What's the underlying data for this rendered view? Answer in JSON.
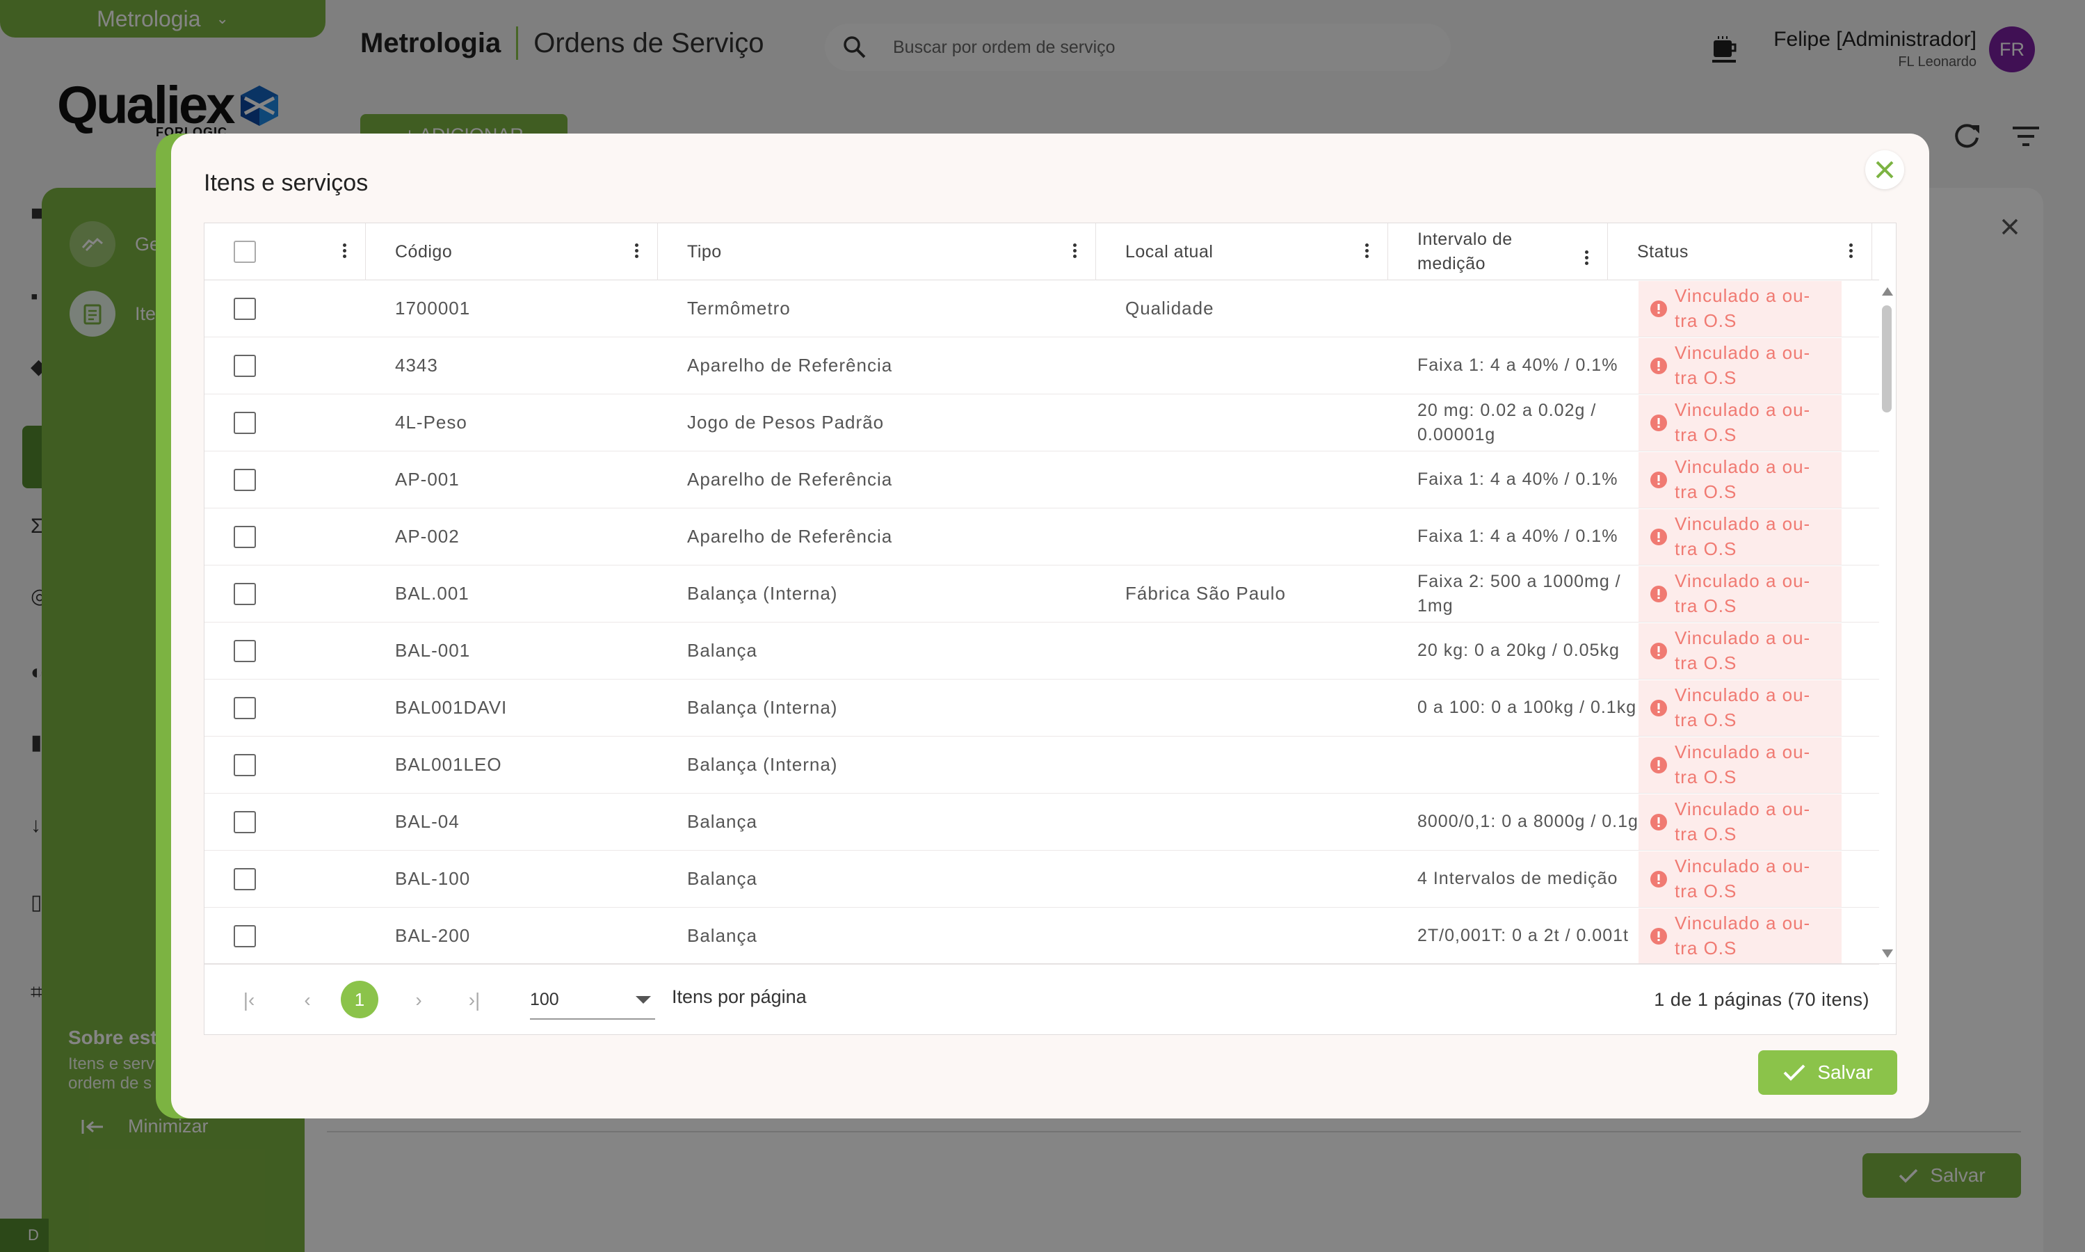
{
  "app": {
    "switch_label": "Metrologia",
    "logo_word": "Qualiex",
    "logo_sub": "FORLOGIC"
  },
  "header": {
    "module": "Metrologia",
    "page": "Ordens de Serviço",
    "search_placeholder": "Buscar por ordem de serviço",
    "user_name": "Felipe [Administrador]",
    "user_company": "FL Leonardo",
    "avatar_initials": "FR"
  },
  "toolbar": {
    "add_label": "+ ADICIONAR"
  },
  "drawer": {
    "items": [
      {
        "label": "Ger",
        "icon": "handshake-icon"
      },
      {
        "label": "Iter",
        "icon": "clipboard-icon"
      }
    ],
    "about_title": "Sobre esta",
    "about_text": "Itens e serv ordem de s",
    "minimize_label": "Minimizar"
  },
  "panel": {
    "save_label": "Salvar"
  },
  "footer_strip": "D",
  "modal": {
    "title": "Itens e serviços",
    "save_label": "Salvar",
    "columns": [
      "Código",
      "Tipo",
      "Local atual",
      "Intervalo de medição",
      "Status"
    ],
    "rows": [
      {
        "codigo": "1700001",
        "tipo": "Termômetro",
        "local": "Qualidade",
        "intervalo": "",
        "status": "Vinculado a ou-tra O.S"
      },
      {
        "codigo": "4343",
        "tipo": "Aparelho de Referência",
        "local": "",
        "intervalo": "Faixa 1: 4 a 40% / 0.1%",
        "status": "Vinculado a ou-tra O.S"
      },
      {
        "codigo": "4L-Peso",
        "tipo": "Jogo de Pesos Padrão",
        "local": "",
        "intervalo": "20 mg: 0.02 a 0.02g / 0.00001g",
        "status": "Vinculado a ou-tra O.S"
      },
      {
        "codigo": "AP-001",
        "tipo": "Aparelho de Referência",
        "local": "",
        "intervalo": "Faixa 1: 4 a 40% / 0.1%",
        "status": "Vinculado a ou-tra O.S"
      },
      {
        "codigo": "AP-002",
        "tipo": "Aparelho de Referência",
        "local": "",
        "intervalo": "Faixa 1: 4 a 40% / 0.1%",
        "status": "Vinculado a ou-tra O.S"
      },
      {
        "codigo": "BAL.001",
        "tipo": "Balança (Interna)",
        "local": "Fábrica São Paulo",
        "intervalo": "Faixa 2: 500 a 1000mg / 1mg",
        "status": "Vinculado a ou-tra O.S"
      },
      {
        "codigo": "BAL-001",
        "tipo": "Balança",
        "local": "",
        "intervalo": "20 kg: 0 a 20kg / 0.05kg",
        "status": "Vinculado a ou-tra O.S"
      },
      {
        "codigo": "BAL001DAVI",
        "tipo": "Balança (Interna)",
        "local": "",
        "intervalo": "0 a 100: 0 a 100kg / 0.1kg",
        "status": "Vinculado a ou-tra O.S"
      },
      {
        "codigo": "BAL001LEO",
        "tipo": "Balança (Interna)",
        "local": "",
        "intervalo": "",
        "status": "Vinculado a ou-tra O.S"
      },
      {
        "codigo": "BAL-04",
        "tipo": "Balança",
        "local": "",
        "intervalo": "8000/0,1: 0 a 8000g / 0.1g",
        "status": "Vinculado a ou-tra O.S"
      },
      {
        "codigo": "BAL-100",
        "tipo": "Balança",
        "local": "",
        "intervalo": "4 Intervalos de medição",
        "status": "Vinculado a ou-tra O.S"
      },
      {
        "codigo": "BAL-200",
        "tipo": "Balança",
        "local": "",
        "intervalo": "2T/0,001T: 0 a 2t / 0.001t",
        "status": "Vinculado a ou-tra O.S"
      }
    ],
    "pagination": {
      "current_page": "1",
      "page_size": "100",
      "page_size_label": "Itens por página",
      "summary": "1 de 1 páginas (70 itens)"
    }
  },
  "colors": {
    "brand_green": "#7cb342",
    "button_green": "#8bc34a",
    "status_bg": "#fdeceb",
    "status_text": "#f07a72",
    "avatar": "#7b1fa2"
  }
}
